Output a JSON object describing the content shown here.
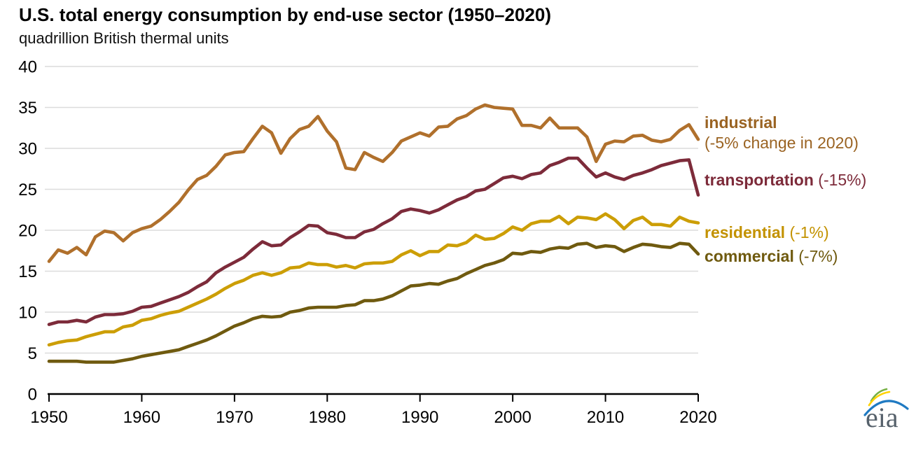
{
  "title": "U.S. total energy consumption by end-use sector (1950–2020)",
  "subtitle": "quadrillion British thermal units",
  "logo": {
    "text": "eia"
  },
  "chart_data": {
    "type": "line",
    "title": "U.S. total energy consumption by end-use sector (1950–2020)",
    "ylabel": "quadrillion British thermal units",
    "xlabel": "",
    "xlim": [
      1950,
      2020
    ],
    "ylim": [
      0,
      40
    ],
    "xticks": [
      1950,
      1960,
      1970,
      1980,
      1990,
      2000,
      2010,
      2020
    ],
    "yticks": [
      0,
      5,
      10,
      15,
      20,
      25,
      30,
      35,
      40
    ],
    "grid": "horizontal",
    "grid_color": "#dcdcdc",
    "axis_color": "#000000",
    "legend_position": "right-of-lines",
    "x": [
      1950,
      1951,
      1952,
      1953,
      1954,
      1955,
      1956,
      1957,
      1958,
      1959,
      1960,
      1961,
      1962,
      1963,
      1964,
      1965,
      1966,
      1967,
      1968,
      1969,
      1970,
      1971,
      1972,
      1973,
      1974,
      1975,
      1976,
      1977,
      1978,
      1979,
      1980,
      1981,
      1982,
      1983,
      1984,
      1985,
      1986,
      1987,
      1988,
      1989,
      1990,
      1991,
      1992,
      1993,
      1994,
      1995,
      1996,
      1997,
      1998,
      1999,
      2000,
      2001,
      2002,
      2003,
      2004,
      2005,
      2006,
      2007,
      2008,
      2009,
      2010,
      2011,
      2012,
      2013,
      2014,
      2015,
      2016,
      2017,
      2018,
      2019,
      2020
    ],
    "series": [
      {
        "name": "industrial",
        "label": "industrial",
        "annotation": "(-5% change in 2020)",
        "color": "#b0702c",
        "label_color": "#9a6322",
        "values": [
          16.2,
          17.6,
          17.2,
          17.9,
          17.0,
          19.2,
          19.9,
          19.7,
          18.7,
          19.7,
          20.2,
          20.5,
          21.3,
          22.3,
          23.4,
          24.9,
          26.2,
          26.7,
          27.8,
          29.2,
          29.5,
          29.6,
          31.2,
          32.7,
          31.9,
          29.4,
          31.2,
          32.3,
          32.7,
          33.9,
          32.1,
          30.8,
          27.6,
          27.4,
          29.5,
          28.9,
          28.4,
          29.5,
          30.9,
          31.4,
          31.9,
          31.5,
          32.6,
          32.7,
          33.6,
          34.0,
          34.8,
          35.3,
          35.0,
          34.9,
          34.8,
          32.8,
          32.8,
          32.5,
          33.7,
          32.5,
          32.5,
          32.5,
          31.4,
          28.4,
          30.5,
          30.9,
          30.8,
          31.5,
          31.6,
          31.0,
          30.8,
          31.1,
          32.2,
          32.9,
          31.1
        ]
      },
      {
        "name": "transportation",
        "label": "transportation",
        "annotation": "(-15%)",
        "color": "#7d2b3a",
        "label_color": "#7d2b3a",
        "values": [
          8.5,
          8.8,
          8.8,
          9.0,
          8.8,
          9.4,
          9.7,
          9.7,
          9.8,
          10.1,
          10.6,
          10.7,
          11.1,
          11.5,
          11.9,
          12.4,
          13.1,
          13.7,
          14.8,
          15.5,
          16.1,
          16.7,
          17.7,
          18.6,
          18.1,
          18.2,
          19.1,
          19.8,
          20.6,
          20.5,
          19.7,
          19.5,
          19.1,
          19.1,
          19.8,
          20.1,
          20.8,
          21.4,
          22.3,
          22.6,
          22.4,
          22.1,
          22.5,
          23.1,
          23.7,
          24.1,
          24.8,
          25.0,
          25.7,
          26.4,
          26.6,
          26.3,
          26.8,
          27.0,
          27.9,
          28.3,
          28.8,
          28.8,
          27.6,
          26.5,
          27.0,
          26.5,
          26.2,
          26.7,
          27.0,
          27.4,
          27.9,
          28.2,
          28.5,
          28.6,
          24.3
        ]
      },
      {
        "name": "residential",
        "label": "residential",
        "annotation": "(-1%)",
        "color": "#cc9e06",
        "label_color": "#c39200",
        "values": [
          6.0,
          6.3,
          6.5,
          6.6,
          7.0,
          7.3,
          7.6,
          7.6,
          8.2,
          8.4,
          9.0,
          9.2,
          9.6,
          9.9,
          10.1,
          10.6,
          11.1,
          11.6,
          12.2,
          12.9,
          13.5,
          13.9,
          14.5,
          14.8,
          14.5,
          14.8,
          15.4,
          15.5,
          16.0,
          15.8,
          15.8,
          15.5,
          15.7,
          15.4,
          15.9,
          16.0,
          16.0,
          16.2,
          17.0,
          17.5,
          16.9,
          17.4,
          17.4,
          18.2,
          18.1,
          18.5,
          19.4,
          18.9,
          19.0,
          19.6,
          20.4,
          20.0,
          20.8,
          21.1,
          21.1,
          21.7,
          20.8,
          21.6,
          21.5,
          21.3,
          22.0,
          21.3,
          20.2,
          21.2,
          21.6,
          20.7,
          20.7,
          20.5,
          21.6,
          21.1,
          20.9
        ]
      },
      {
        "name": "commercial",
        "label": "commercial",
        "annotation": "(-7%)",
        "color": "#6f5a0f",
        "label_color": "#6f5a0f",
        "values": [
          4.0,
          4.0,
          4.0,
          4.0,
          3.9,
          3.9,
          3.9,
          3.9,
          4.1,
          4.3,
          4.6,
          4.8,
          5.0,
          5.2,
          5.4,
          5.8,
          6.2,
          6.6,
          7.1,
          7.7,
          8.3,
          8.7,
          9.2,
          9.5,
          9.4,
          9.5,
          10.0,
          10.2,
          10.5,
          10.6,
          10.6,
          10.6,
          10.8,
          10.9,
          11.4,
          11.4,
          11.6,
          12.0,
          12.6,
          13.2,
          13.3,
          13.5,
          13.4,
          13.8,
          14.1,
          14.7,
          15.2,
          15.7,
          16.0,
          16.4,
          17.2,
          17.1,
          17.4,
          17.3,
          17.7,
          17.9,
          17.8,
          18.3,
          18.4,
          17.9,
          18.1,
          18.0,
          17.4,
          17.9,
          18.3,
          18.2,
          18.0,
          17.9,
          18.4,
          18.3,
          17.1
        ]
      }
    ]
  }
}
